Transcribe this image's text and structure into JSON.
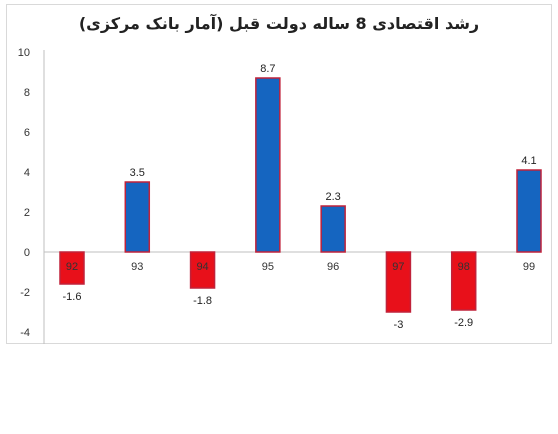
{
  "chart_data": {
    "type": "bar",
    "title": "رشد اقتصادی 8 ساله دولت قبل (آمار بانک مرکزی)",
    "xlabel": "",
    "ylabel": "",
    "categories": [
      "92",
      "93",
      "94",
      "95",
      "96",
      "97",
      "98",
      "99"
    ],
    "values": [
      -1.6,
      3.5,
      -1.8,
      8.7,
      2.3,
      -3,
      -2.9,
      4.1
    ],
    "data_labels": [
      "-1.6",
      "3.5",
      "-1.8",
      "8.7",
      "2.3",
      "-3",
      "-2.9",
      "4.1"
    ],
    "ylim": [
      -4,
      10
    ],
    "yticks": [
      10,
      8,
      6,
      4,
      2,
      0,
      -2,
      -4
    ],
    "ytick_labels": [
      "10",
      "8",
      "6",
      "4",
      "2",
      "0",
      "-2",
      "-4"
    ],
    "grid": false,
    "colors": {
      "positive_fill": "#1565c0",
      "negative_fill": "#e8101a",
      "bar_border": "#c0223a",
      "axis": "#bfbfbf"
    }
  }
}
